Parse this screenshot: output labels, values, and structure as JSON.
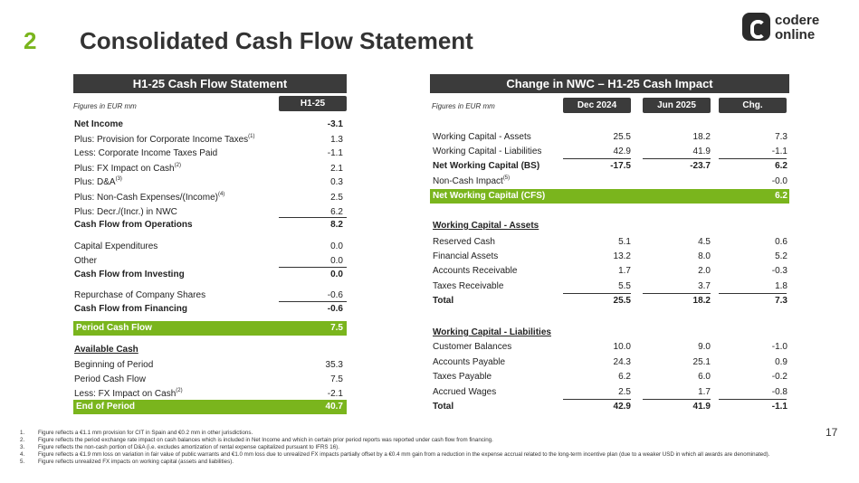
{
  "header": {
    "number": "2",
    "title": "Consolidated Cash Flow Statement"
  },
  "logo": {
    "line1": "codere",
    "line2": "online"
  },
  "left": {
    "heading": "H1-25 Cash Flow Statement",
    "units": "Figures in EUR mm",
    "col": "H1-25",
    "rows": [
      {
        "label": "Net Income",
        "value": "-3.1"
      },
      {
        "label": "Plus: Provision for Corporate Income Taxes",
        "sup": "(1)",
        "value": "1.3"
      },
      {
        "label": "Less: Corporate Income Taxes Paid",
        "value": "-1.1"
      },
      {
        "label": "Plus: FX Impact on Cash",
        "sup": "(2)",
        "value": "2.1"
      },
      {
        "label": "Plus: D&A",
        "sup": "(3)",
        "value": "0.3"
      },
      {
        "label": "Plus: Non-Cash Expenses/(Income)",
        "sup": "(4)",
        "value": "2.5"
      },
      {
        "label": "Plus: Decr./(Incr.) in NWC",
        "value": "6.2"
      },
      {
        "label": "Cash Flow from Operations",
        "value": "8.2"
      },
      {
        "label": "Capital Expenditures",
        "value": "0.0"
      },
      {
        "label": "Other",
        "value": "0.0"
      },
      {
        "label": "Cash Flow from Investing",
        "value": "0.0"
      },
      {
        "label": "Repurchase of Company Shares",
        "value": "-0.6"
      },
      {
        "label": "Cash Flow from Financing",
        "value": "-0.6"
      },
      {
        "label": "Period Cash Flow",
        "value": "7.5"
      },
      {
        "label": "Available Cash",
        "value": ""
      },
      {
        "label": "Beginning of Period",
        "value": "35.3"
      },
      {
        "label": "Period Cash Flow",
        "value": "7.5"
      },
      {
        "label": "Less: FX Impact on Cash",
        "sup": "(2)",
        "value": "-2.1"
      },
      {
        "label": "End of Period",
        "value": "40.7"
      }
    ]
  },
  "right": {
    "heading": "Change in NWC – H1-25 Cash Impact",
    "units": "Figures in EUR mm",
    "cols": [
      "Dec 2024",
      "Jun 2025",
      "Chg."
    ],
    "rows": [
      {
        "label": "Working Capital - Assets",
        "v": [
          "25.5",
          "18.2",
          "7.3"
        ]
      },
      {
        "label": "Working Capital - Liabilities",
        "v": [
          "42.9",
          "41.9",
          "-1.1"
        ]
      },
      {
        "label": "Net Working Capital (BS)",
        "v": [
          "-17.5",
          "-23.7",
          "6.2"
        ]
      },
      {
        "label": "Non-Cash Impact",
        "sup": "(5)",
        "v": [
          "",
          "",
          "-0.0"
        ]
      },
      {
        "label": "Net Working Capital (CFS)",
        "v": [
          "",
          "",
          "6.2"
        ]
      },
      {
        "label": "Working Capital - Assets",
        "v": [
          "",
          "",
          ""
        ]
      },
      {
        "label": "Reserved Cash",
        "v": [
          "5.1",
          "4.5",
          "0.6"
        ]
      },
      {
        "label": "Financial Assets",
        "v": [
          "13.2",
          "8.0",
          "5.2"
        ]
      },
      {
        "label": "Accounts Receivable",
        "v": [
          "1.7",
          "2.0",
          "-0.3"
        ]
      },
      {
        "label": "Taxes Receivable",
        "v": [
          "5.5",
          "3.7",
          "1.8"
        ]
      },
      {
        "label": "Total",
        "v": [
          "25.5",
          "18.2",
          "7.3"
        ]
      },
      {
        "label": "Working Capital - Liabilities",
        "v": [
          "",
          "",
          ""
        ]
      },
      {
        "label": "Customer Balances",
        "v": [
          "10.0",
          "9.0",
          "-1.0"
        ]
      },
      {
        "label": "Accounts Payable",
        "v": [
          "24.3",
          "25.1",
          "0.9"
        ]
      },
      {
        "label": "Taxes Payable",
        "v": [
          "6.2",
          "6.0",
          "-0.2"
        ]
      },
      {
        "label": "Accrued Wages",
        "v": [
          "2.5",
          "1.7",
          "-0.8"
        ]
      },
      {
        "label": "Total",
        "v": [
          "42.9",
          "41.9",
          "-1.1"
        ]
      }
    ]
  },
  "footnotes": [
    {
      "n": "1.",
      "t": "Figure reflects a €1.1 mm provision for CIT in Spain and €0.2 mm in other jurisdictions."
    },
    {
      "n": "2.",
      "t": "Figure reflects the period exchange rate impact on cash balances which is included in Net Income and which in certain prior period reports was reported under cash flow from financing."
    },
    {
      "n": "3.",
      "t": "Figure reflects the non-cash portion of D&A (i.e. excludes amortization of rental expense capitalized pursuant to IFRS 16)."
    },
    {
      "n": "4.",
      "t": "Figure reflects a €1.9 mm loss on variation in fair value of public warrants and €1.0 mm loss due to unrealized FX impacts partially offset by a €0.4 mm gain from a reduction in the expense accrual related to the long-term incentive plan (due to a weaker USD in which all awards are denominated)."
    },
    {
      "n": "5.",
      "t": "Figure reflects unrealized FX impacts on working capital (assets and liabilities)."
    }
  ],
  "page": "17"
}
